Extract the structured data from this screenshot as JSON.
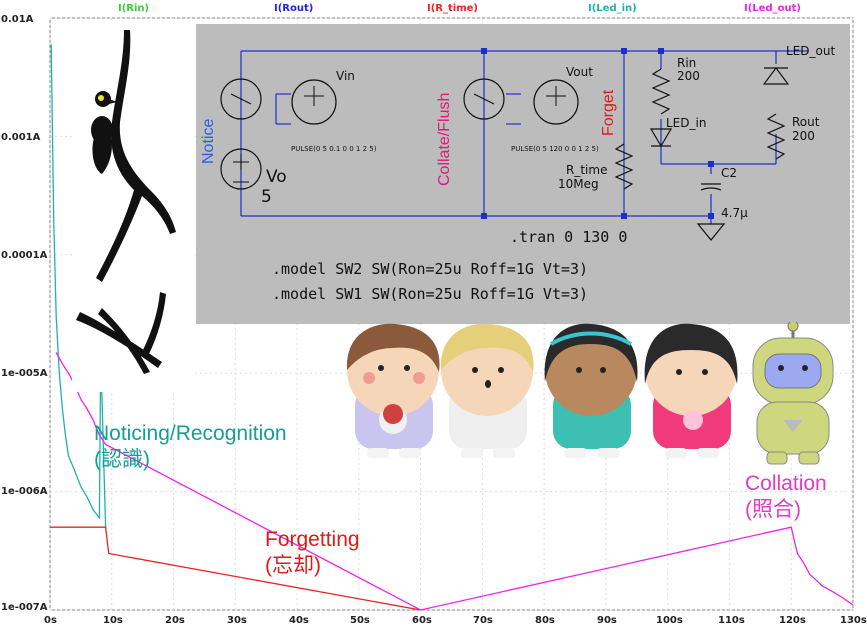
{
  "legend": [
    {
      "label": "I(Rin)",
      "color": "#3ccc3c"
    },
    {
      "label": "I(Rout)",
      "color": "#2222ee"
    },
    {
      "label": "I(R_time)",
      "color": "#ee2222"
    },
    {
      "label": "I(Led_in)",
      "color": "#20b2aa"
    },
    {
      "label": "I(Led_out)",
      "color": "#ee22ee"
    }
  ],
  "y_ticks": [
    "0.01A",
    "0.001A",
    "0.0001A",
    "1e-005A",
    "1e-006A",
    "1e-007A"
  ],
  "x_ticks": [
    "0s",
    "10s",
    "20s",
    "30s",
    "40s",
    "50s",
    "60s",
    "70s",
    "80s",
    "90s",
    "100s",
    "110s",
    "120s",
    "130s"
  ],
  "chart_data": {
    "type": "line",
    "x_scale": "linear",
    "y_scale": "log",
    "xlim": [
      0,
      130
    ],
    "ylim": [
      1e-07,
      0.01
    ],
    "series": [
      {
        "name": "I(Led_in)",
        "x": [
          0.2,
          0.6,
          1,
          1.5,
          2,
          2.5,
          3,
          4,
          5,
          6,
          7,
          8,
          8.2,
          9
        ],
        "y": [
          0.006,
          0.0002,
          3e-05,
          1e-05,
          5e-06,
          3e-06,
          2e-06,
          1.5e-06,
          1.1e-06,
          9e-07,
          7e-07,
          6e-07,
          1.5e-05,
          5e-07
        ]
      },
      {
        "name": "I(R_time)",
        "x": [
          0,
          9,
          9.5,
          60
        ],
        "y": [
          5e-07,
          5e-07,
          3e-07,
          1e-07
        ]
      },
      {
        "name": "I(Led_out)",
        "x": [
          1,
          2,
          3,
          4,
          5,
          6,
          7,
          8,
          9,
          60,
          120,
          121,
          122,
          123,
          124,
          125,
          126,
          127,
          128,
          129,
          130
        ],
        "y": [
          1.5e-05,
          1.2e-05,
          1e-05,
          8e-06,
          6e-06,
          5e-06,
          4e-06,
          3e-06,
          2.5e-06,
          1e-07,
          5e-07,
          3e-07,
          2.5e-07,
          2e-07,
          1.8e-07,
          1.6e-07,
          1.5e-07,
          1.4e-07,
          1.3e-07,
          1.2e-07,
          1.1e-07
        ]
      }
    ]
  },
  "schematic": {
    "tran": ".tran 0 130 0",
    "model2": ".model SW2 SW(Ron=25u Roff=1G Vt=3)",
    "model1": ".model SW1 SW(Ron=25u Roff=1G Vt=3)",
    "vin": "Vin",
    "vout": "Vout",
    "pulse1": "PULSE(0 5 0.1 0 0 1 2 5)",
    "pulse2": "PULSE(0 5 120 0 0 1 2 5)",
    "vo_name": "Vo",
    "vo_value": "5",
    "rtime_name": "R_time",
    "rtime_value": "10Meg",
    "rin_name": "Rin",
    "rin_value": "200",
    "ledin": "LED_in",
    "ledout": "LED_out",
    "rout_name": "Rout",
    "rout_value": "200",
    "c2_name": "C2",
    "c2_value": "4.7µ",
    "notice": "Notice",
    "collate": "Collate/Flush",
    "forget": "Forget"
  },
  "annotations": {
    "noticing_1": "Noticing/Recognition",
    "noticing_2": "(認識)",
    "forgetting_1": "Forgetting",
    "forgetting_2": "(忘却)",
    "collation_1": "Collation",
    "collation_2": "(照合)"
  },
  "colors": {
    "notice": "#2a5fe0",
    "collate": "#e0197a",
    "forget": "#d81e1e",
    "noticing": "#159e96",
    "forgetting": "#e01a1a",
    "collation": "#e33ac6"
  }
}
